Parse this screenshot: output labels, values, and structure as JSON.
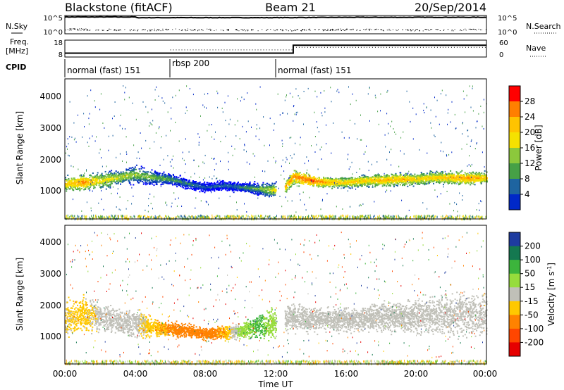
{
  "header": {
    "station": "Blackstone (fitACF)",
    "beam": "Beam 21",
    "date": "20/Sep/2014"
  },
  "top_panels": {
    "nsky_label": "N.Sky",
    "nsearch_label": "N.Search",
    "freq_label_1": "Freq.",
    "freq_label_2": "[MHz]",
    "nave_label": "Nave",
    "cpid_label": "CPID",
    "noise_ticks": [
      "10^5",
      "10^0"
    ],
    "freq_ticks": [
      "18",
      "8"
    ],
    "nave_ticks": [
      "60",
      "0"
    ],
    "cpid_segments": [
      {
        "label": "normal (fast) 151",
        "start_hour": 0
      },
      {
        "label": "rbsp 200",
        "start_hour": 6
      },
      {
        "label": "normal (fast) 151",
        "start_hour": 12
      }
    ]
  },
  "power_colorbar": {
    "label": "Power [dB]",
    "ticks": [
      "28",
      "24",
      "20",
      "16",
      "12",
      "8",
      "4"
    ],
    "colors": [
      "#ff0000",
      "#ff7f00",
      "#ffc300",
      "#f5e100",
      "#8cc83c",
      "#46a046",
      "#1e64a0",
      "#0028c8",
      "#0000ff"
    ]
  },
  "velocity_colorbar": {
    "label": "Velocity [m s",
    "label_sup": "-1",
    "label_end": "]",
    "ticks": [
      "200",
      "100",
      "50",
      "15",
      "-15",
      "-50",
      "-100",
      "-200"
    ],
    "colors": [
      "#1e3ca0",
      "#147850",
      "#3cb43c",
      "#96dc3c",
      "#c0c0b8",
      "#ffc800",
      "#ff8200",
      "#ff4600",
      "#e60000"
    ]
  },
  "axes": {
    "y_label": "Slant Range [km]",
    "y_ticks": [
      "4000",
      "3000",
      "2000",
      "1000"
    ],
    "x_ticks": [
      "00:00",
      "04:00",
      "08:00",
      "12:00",
      "16:00",
      "20:00",
      "00:00"
    ],
    "x_label": "Time UT"
  },
  "chart_data": [
    {
      "type": "line",
      "title": "",
      "series": [
        {
          "name": "N.Sky",
          "x": [
            0,
            4,
            4.1,
            12,
            16,
            20,
            24
          ],
          "y": [
            4.6,
            4.6,
            4.4,
            4.4,
            4.5,
            4.5,
            4.5
          ]
        },
        {
          "name": "N.Search",
          "x": [
            0,
            4,
            6,
            12,
            16,
            20,
            24
          ],
          "y": [
            1.3,
            1.1,
            1.2,
            1.1,
            1.2,
            1.1,
            1.2
          ]
        }
      ],
      "xlim": [
        0,
        24
      ],
      "ylabel": "N.Sky"
    },
    {
      "type": "line",
      "title": "",
      "series": [
        {
          "name": "Freq",
          "x": [
            0,
            6,
            6,
            13,
            13,
            24
          ],
          "y": [
            10.3,
            10.3,
            10.3,
            10.3,
            15,
            15
          ]
        },
        {
          "name": "Nave",
          "x": [
            0,
            6,
            6,
            13,
            13,
            24
          ],
          "y": [
            10,
            10,
            12,
            12,
            22,
            22
          ]
        }
      ],
      "xlim": [
        0,
        24
      ]
    },
    {
      "type": "heatmap",
      "title": "",
      "xlabel": "",
      "ylabel": "Slant Range [km]",
      "xlim": [
        0,
        24
      ],
      "ylim": [
        180,
        4600
      ],
      "colorbar": "Power [dB]",
      "colorbar_range": [
        0,
        30
      ],
      "bands": [
        {
          "x": [
            0,
            1,
            2,
            3,
            4,
            5,
            6,
            7,
            8,
            9,
            10,
            11,
            12
          ],
          "y_center": [
            1300,
            1350,
            1400,
            1500,
            1600,
            1500,
            1450,
            1300,
            1200,
            1250,
            1200,
            1150,
            1100
          ],
          "y_width": [
            300,
            300,
            350,
            300,
            350,
            300,
            250,
            200,
            200,
            200,
            200,
            250,
            300
          ],
          "power": [
            22,
            26,
            20,
            18,
            16,
            14,
            12,
            10,
            8,
            8,
            10,
            14,
            20
          ]
        },
        {
          "x": [
            12.5,
            13,
            14,
            15,
            16,
            17,
            18,
            19,
            20,
            21,
            22,
            23,
            24
          ],
          "y_center": [
            1200,
            1550,
            1400,
            1350,
            1350,
            1400,
            1420,
            1450,
            1450,
            1500,
            1500,
            1480,
            1500
          ],
          "y_width": [
            250,
            300,
            250,
            220,
            220,
            250,
            250,
            250,
            250,
            250,
            250,
            250,
            250
          ],
          "power": [
            24,
            26,
            28,
            24,
            22,
            22,
            24,
            24,
            22,
            22,
            24,
            26,
            22
          ]
        }
      ]
    },
    {
      "type": "heatmap",
      "title": "",
      "xlabel": "Time UT",
      "ylabel": "Slant Range [km]",
      "xlim": [
        0,
        24
      ],
      "ylim": [
        180,
        4600
      ],
      "colorbar": "Velocity [m s-1]",
      "colorbar_range": [
        -200,
        200
      ],
      "bands": [
        {
          "x": [
            0,
            1,
            2,
            3,
            4,
            5,
            6,
            7,
            8,
            9,
            10,
            11,
            12
          ],
          "y_center": [
            1600,
            1800,
            1700,
            1550,
            1500,
            1350,
            1300,
            1250,
            1150,
            1200,
            1250,
            1400,
            1500
          ],
          "y_width": [
            800,
            700,
            600,
            500,
            600,
            400,
            300,
            300,
            250,
            300,
            300,
            500,
            700
          ],
          "velocity": [
            -20,
            -30,
            0,
            0,
            0,
            -40,
            -60,
            -70,
            -80,
            -50,
            30,
            60,
            20
          ]
        },
        {
          "x": [
            12.5,
            13,
            14,
            15,
            16,
            17,
            18,
            19,
            20,
            21,
            22,
            23,
            24
          ],
          "y_center": [
            1600,
            1700,
            1650,
            1600,
            1600,
            1650,
            1700,
            1700,
            1700,
            1750,
            1800,
            1800,
            1750
          ],
          "y_width": [
            500,
            600,
            550,
            500,
            500,
            500,
            600,
            600,
            700,
            800,
            900,
            900,
            900
          ],
          "velocity": [
            0,
            0,
            0,
            0,
            0,
            0,
            0,
            0,
            0,
            0,
            0,
            0,
            0
          ]
        }
      ]
    }
  ]
}
